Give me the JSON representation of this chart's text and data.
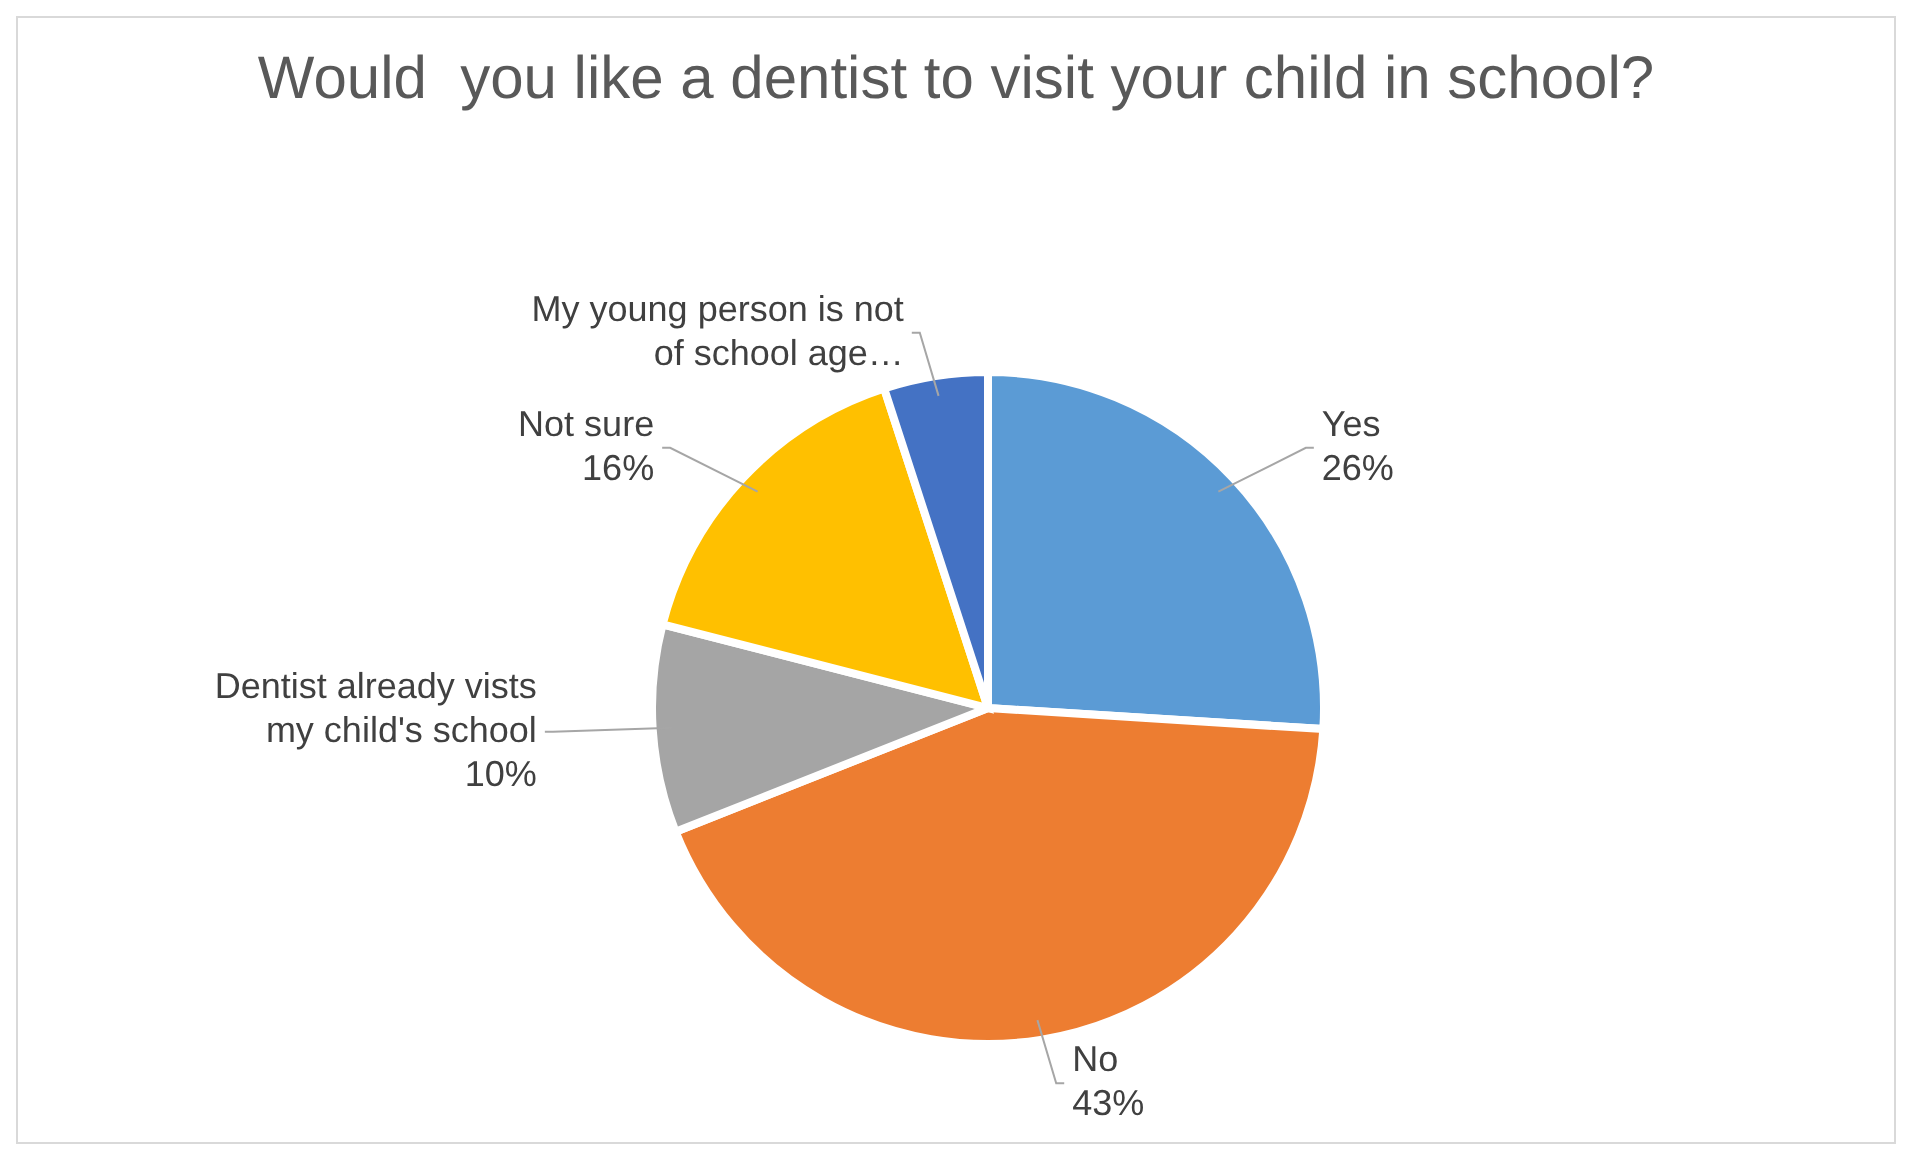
{
  "chart_data": {
    "type": "pie",
    "title": "Would  you like a dentist to visit your child in school?",
    "categories": [
      "Yes",
      "No",
      "Dentist already vists my child's school",
      "Not sure",
      "My young person is not of school age…"
    ],
    "values": [
      26,
      43,
      10,
      16,
      5
    ],
    "value_labels": [
      "26%",
      "43%",
      "10%",
      "16%",
      null
    ],
    "colors": [
      "#5b9bd5",
      "#ed7d31",
      "#a5a5a5",
      "#ffc000",
      "#4472c4"
    ]
  }
}
